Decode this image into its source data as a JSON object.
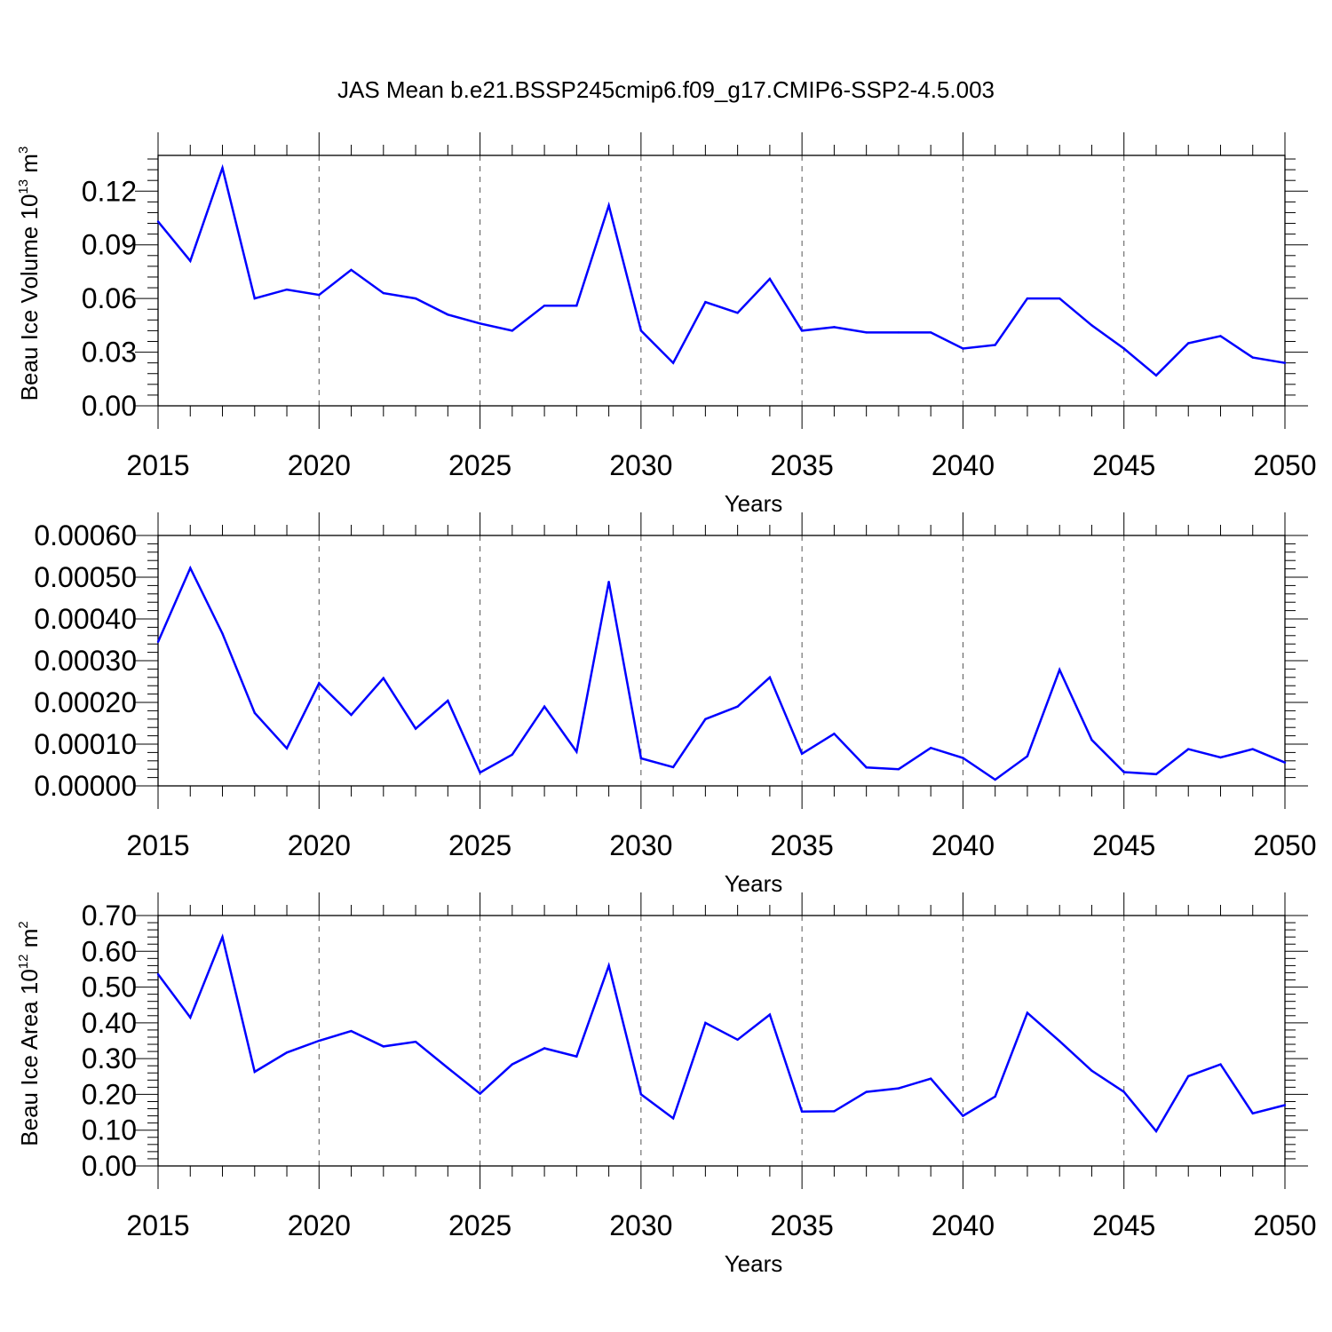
{
  "figure": {
    "title": "JAS Mean b.e21.BSSP245cmip6.f09_g17.CMIP6-SSP2-4.5.003",
    "line_color": "#0000ff"
  },
  "chart_data": [
    {
      "type": "line",
      "xlabel": "Years",
      "ylabel": {
        "prefix": "Beau Ice Volume 10",
        "exp": "13",
        "unit": " m",
        "unit_exp": "3"
      },
      "xlim": [
        2015,
        2050
      ],
      "ylim": [
        0.0,
        0.14
      ],
      "xticks": [
        2015,
        2020,
        2025,
        2030,
        2035,
        2040,
        2045,
        2050
      ],
      "yticks": [
        "0.00",
        "0.03",
        "0.06",
        "0.09",
        "0.12"
      ],
      "grid": "dashed vertical at major x ticks",
      "x": [
        2015,
        2016,
        2017,
        2018,
        2019,
        2020,
        2021,
        2022,
        2023,
        2024,
        2025,
        2026,
        2027,
        2028,
        2029,
        2030,
        2031,
        2032,
        2033,
        2034,
        2035,
        2036,
        2037,
        2038,
        2039,
        2040,
        2041,
        2042,
        2043,
        2044,
        2045,
        2046,
        2047,
        2048,
        2049,
        2050
      ],
      "values": [
        0.103,
        0.081,
        0.133,
        0.06,
        0.065,
        0.062,
        0.076,
        0.063,
        0.06,
        0.051,
        0.046,
        0.042,
        0.056,
        0.056,
        0.112,
        0.042,
        0.024,
        0.058,
        0.052,
        0.071,
        0.042,
        0.044,
        0.041,
        0.041,
        0.041,
        0.032,
        0.034,
        0.06,
        0.06,
        0.045,
        0.032,
        0.017,
        0.035,
        0.039,
        0.027,
        0.024
      ]
    },
    {
      "type": "line",
      "xlabel": "Years",
      "ylabel": {
        "prefix": "",
        "exp": "",
        "unit": "",
        "unit_exp": ""
      },
      "xlim": [
        2015,
        2050
      ],
      "ylim": [
        0.0,
        0.0006
      ],
      "xticks": [
        2015,
        2020,
        2025,
        2030,
        2035,
        2040,
        2045,
        2050
      ],
      "yticks": [
        "0.00000",
        "0.00010",
        "0.00020",
        "0.00030",
        "0.00040",
        "0.00050",
        "0.00060"
      ],
      "grid": "dashed vertical at major x ticks",
      "x": [
        2015,
        2016,
        2017,
        2018,
        2019,
        2020,
        2021,
        2022,
        2023,
        2024,
        2025,
        2026,
        2027,
        2028,
        2029,
        2030,
        2031,
        2032,
        2033,
        2034,
        2035,
        2036,
        2037,
        2038,
        2039,
        2040,
        2041,
        2042,
        2043,
        2044,
        2045,
        2046,
        2047,
        2048,
        2049,
        2050
      ],
      "values": [
        0.000345,
        0.000522,
        0.000365,
        0.000175,
        9e-05,
        0.000246,
        0.00017,
        0.000258,
        0.000137,
        0.000204,
        3.2e-05,
        7.5e-05,
        0.00019,
        8.2e-05,
        0.000489,
        6.6e-05,
        4.5e-05,
        0.00016,
        0.00019,
        0.00026,
        7.7e-05,
        0.000125,
        4.4e-05,
        4e-05,
        9.1e-05,
        6.7e-05,
        1.5e-05,
        7.1e-05,
        0.000278,
        0.00011,
        3.3e-05,
        2.8e-05,
        8.8e-05,
        6.8e-05,
        8.8e-05,
        5.6e-05
      ]
    },
    {
      "type": "line",
      "xlabel": "Years",
      "ylabel": {
        "prefix": "Beau Ice Area 10",
        "exp": "12",
        "unit": " m",
        "unit_exp": "2"
      },
      "xlim": [
        2015,
        2050
      ],
      "ylim": [
        0.0,
        0.7
      ],
      "xticks": [
        2015,
        2020,
        2025,
        2030,
        2035,
        2040,
        2045,
        2050
      ],
      "yticks": [
        "0.00",
        "0.10",
        "0.20",
        "0.30",
        "0.40",
        "0.50",
        "0.60",
        "0.70"
      ],
      "grid": "dashed vertical at major x ticks",
      "x": [
        2015,
        2016,
        2017,
        2018,
        2019,
        2020,
        2021,
        2022,
        2023,
        2024,
        2025,
        2026,
        2027,
        2028,
        2029,
        2030,
        2031,
        2032,
        2033,
        2034,
        2035,
        2036,
        2037,
        2038,
        2039,
        2040,
        2041,
        2042,
        2043,
        2044,
        2045,
        2046,
        2047,
        2048,
        2049,
        2050
      ],
      "values": [
        0.536,
        0.415,
        0.64,
        0.263,
        0.317,
        0.35,
        0.377,
        0.334,
        0.347,
        0.274,
        0.202,
        0.284,
        0.329,
        0.306,
        0.56,
        0.2,
        0.133,
        0.4,
        0.353,
        0.423,
        0.152,
        0.153,
        0.207,
        0.217,
        0.244,
        0.14,
        0.194,
        0.428,
        0.349,
        0.266,
        0.207,
        0.097,
        0.251,
        0.284,
        0.147,
        0.17
      ]
    }
  ]
}
